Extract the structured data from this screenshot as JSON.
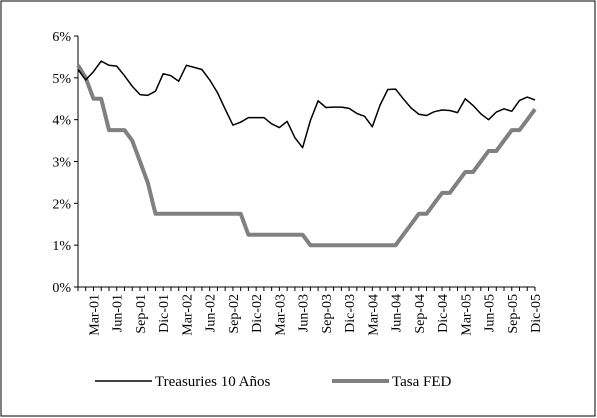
{
  "chart_data": {
    "type": "line",
    "categories": [
      null,
      null,
      "Mar-01",
      null,
      null,
      "Jun-01",
      null,
      null,
      "Sep-01",
      null,
      null,
      "Dic-01",
      null,
      null,
      "Mar-02",
      null,
      null,
      "Jun-02",
      null,
      null,
      "Sep-02",
      null,
      null,
      "Dic-02",
      null,
      null,
      "Mar-03",
      null,
      null,
      "Jun-03",
      null,
      null,
      "Sep-03",
      null,
      null,
      "Dic-03",
      null,
      null,
      "Mar-04",
      null,
      null,
      "Jun-04",
      null,
      null,
      "Sep-04",
      null,
      null,
      "Dic-04",
      null,
      null,
      "Mar-05",
      null,
      null,
      "Jun-05",
      null,
      null,
      "Sep-05",
      null,
      null,
      "Dic-05"
    ],
    "series": [
      {
        "name": "Treasuries 10 Años",
        "color": "#000000",
        "values": [
          5.2,
          4.95,
          5.15,
          5.4,
          5.3,
          5.28,
          5.05,
          4.8,
          4.6,
          4.58,
          4.68,
          5.1,
          5.05,
          4.92,
          5.3,
          5.25,
          5.2,
          4.95,
          4.65,
          4.25,
          3.87,
          3.94,
          4.05,
          4.05,
          4.05,
          3.9,
          3.81,
          3.96,
          3.57,
          3.33,
          3.98,
          4.45,
          4.29,
          4.3,
          4.3,
          4.27,
          4.15,
          4.08,
          3.83,
          4.35,
          4.72,
          4.73,
          4.5,
          4.28,
          4.13,
          4.1,
          4.19,
          4.23,
          4.22,
          4.17,
          4.5,
          4.34,
          4.14,
          4.0,
          4.18,
          4.26,
          4.2,
          4.46,
          4.54,
          4.47
        ]
      },
      {
        "name": "Tasa FED",
        "color": "#808080",
        "values": [
          5.3,
          5.0,
          4.5,
          4.5,
          3.75,
          3.75,
          3.75,
          3.5,
          3.0,
          2.5,
          1.75,
          1.75,
          1.75,
          1.75,
          1.75,
          1.75,
          1.75,
          1.75,
          1.75,
          1.75,
          1.75,
          1.75,
          1.25,
          1.25,
          1.25,
          1.25,
          1.25,
          1.25,
          1.25,
          1.25,
          1.0,
          1.0,
          1.0,
          1.0,
          1.0,
          1.0,
          1.0,
          1.0,
          1.0,
          1.0,
          1.0,
          1.0,
          1.25,
          1.5,
          1.75,
          1.75,
          2.0,
          2.25,
          2.25,
          2.5,
          2.75,
          2.75,
          3.0,
          3.25,
          3.25,
          3.5,
          3.75,
          3.75,
          4.0,
          4.25
        ]
      }
    ],
    "ylim": [
      0,
      6
    ],
    "yticks": [
      {
        "value": 0,
        "label": "0%"
      },
      {
        "value": 1,
        "label": "1%"
      },
      {
        "value": 2,
        "label": "2%"
      },
      {
        "value": 3,
        "label": "3%"
      },
      {
        "value": 4,
        "label": "4%"
      },
      {
        "value": 5,
        "label": "5%"
      },
      {
        "value": 6,
        "label": "6%"
      }
    ],
    "grid": false,
    "legend": "bottom"
  }
}
